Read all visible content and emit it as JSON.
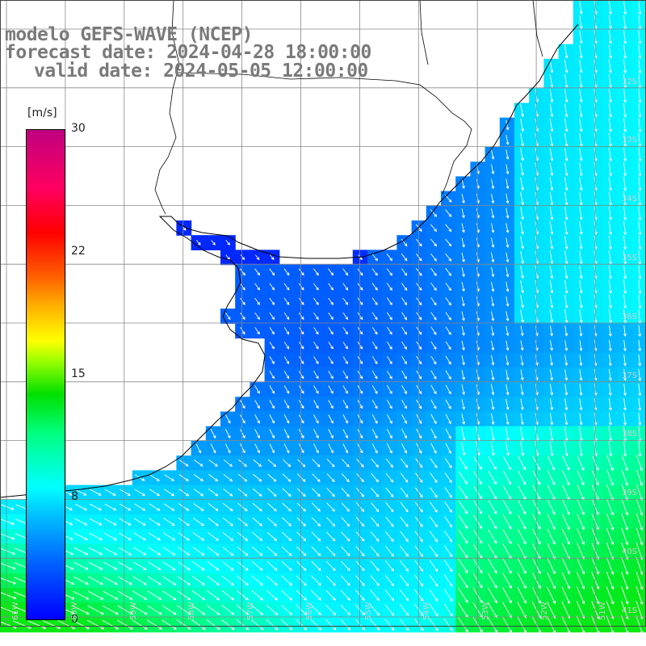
{
  "title": {
    "line1": "modelo GEFS-WAVE (NCEP)",
    "line2": "forecast date: 2024-04-28 18:00:00",
    "line3": "valid date: 2024-05-05 12:00:00"
  },
  "colorbar": {
    "unit": "[m/s]",
    "ticks": [
      "30",
      "22",
      "15",
      "8",
      "0"
    ],
    "tick_values": [
      30,
      22,
      15,
      8,
      0
    ]
  },
  "lat_labels": [
    "32S",
    "33S",
    "34S",
    "35S",
    "36S",
    "37S",
    "38S",
    "39S",
    "40S",
    "41S"
  ],
  "lon_labels": [
    "61W",
    "60W",
    "59W",
    "58W",
    "57W",
    "56W",
    "55W",
    "54W",
    "53W",
    "52W",
    "51W"
  ],
  "colors": {
    "land": "#ffffff",
    "coast": "#000000",
    "grid": "#888888",
    "arrows": "#ffffff",
    "title": "#7a7a7a"
  }
}
